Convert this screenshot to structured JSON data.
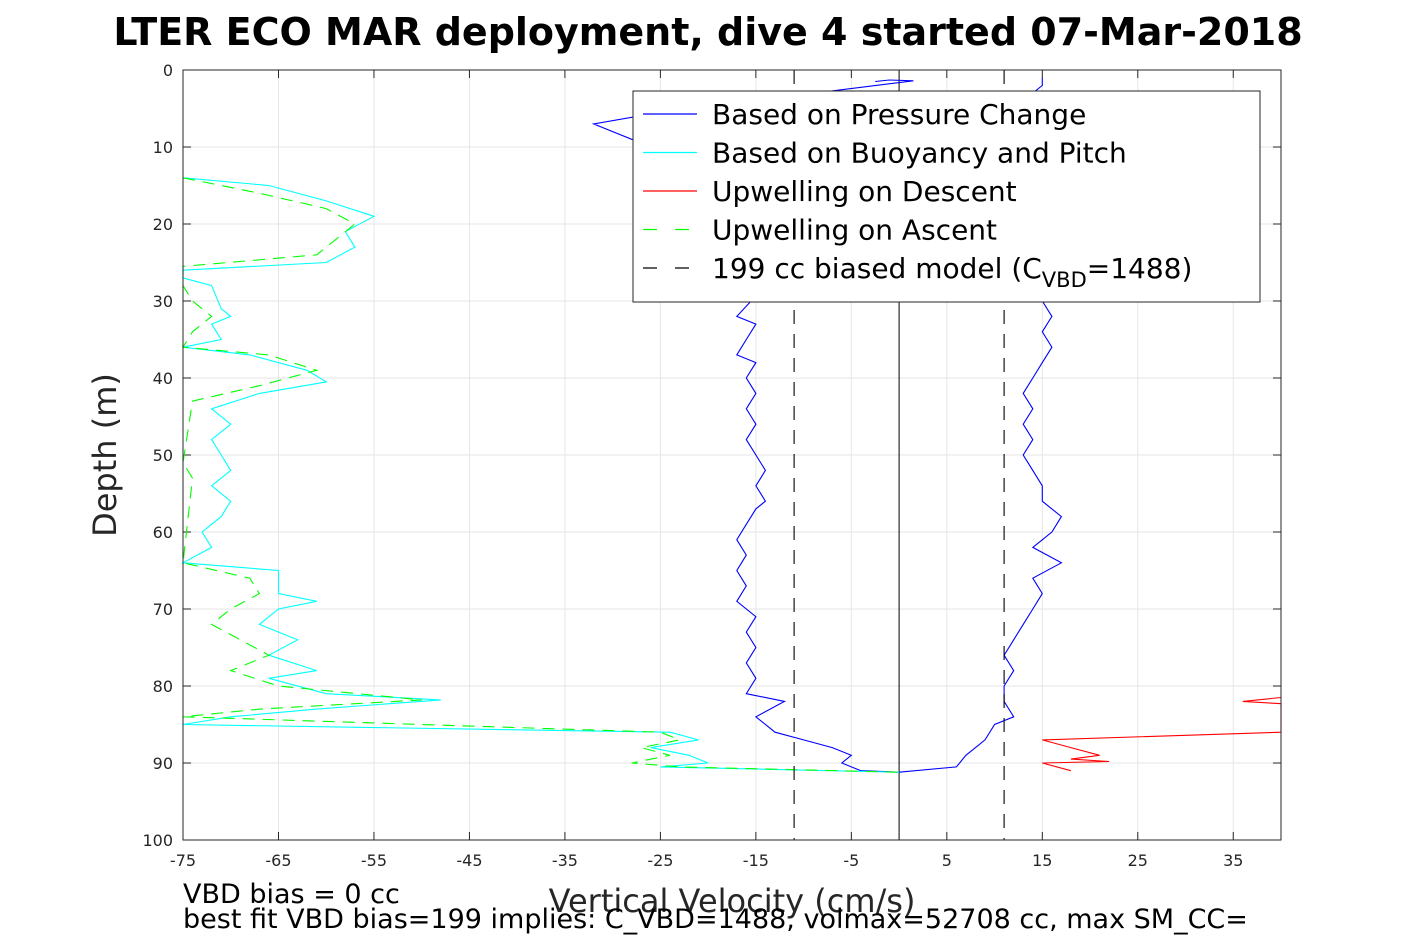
{
  "chart_data": {
    "type": "line",
    "title": "LTER ECO MAR deployment, dive 4 started 07-Mar-2018",
    "xlabel": "Vertical Velocity (cm/s)",
    "ylabel": "Depth (m)",
    "xlim": [
      -75,
      40
    ],
    "ylim": [
      0,
      100
    ],
    "y_reversed": true,
    "grid": true,
    "legend_placement": "top-right",
    "xticks": [
      -75,
      -65,
      -55,
      -45,
      -35,
      -25,
      -15,
      -5,
      5,
      15,
      25,
      35
    ],
    "yticks": [
      0,
      10,
      20,
      30,
      40,
      50,
      60,
      70,
      80,
      90,
      100
    ],
    "legend": [
      {
        "label": "Based on Pressure Change",
        "color": "#0000ff",
        "dash": "solid"
      },
      {
        "label": "Based on Buoyancy and Pitch",
        "color": "#00ffff",
        "dash": "solid"
      },
      {
        "label": "Upwelling on Descent",
        "color": "#ff0000",
        "dash": "solid"
      },
      {
        "label": "Upwelling on Ascent",
        "color": "#00ff00",
        "dash": "dashed"
      },
      {
        "label_prefix": "199 cc biased model (C",
        "label_sub": "VBD",
        "label_suffix": "=1488)",
        "color": "#000000",
        "dash": "dashed"
      }
    ],
    "series": [
      {
        "name": "Based on Pressure Change",
        "color": "#0000ff",
        "dash": "solid",
        "points": [
          [
            -2.5,
            1.5
          ],
          [
            -1,
            1.3
          ],
          [
            1.5,
            1.4
          ],
          [
            -25,
            5.5
          ],
          [
            -32,
            7
          ],
          [
            -28,
            9
          ],
          [
            -22,
            11
          ],
          [
            -14,
            28
          ],
          [
            -17,
            32
          ],
          [
            -15,
            33
          ],
          [
            -16,
            35
          ],
          [
            -17,
            37
          ],
          [
            -15,
            38
          ],
          [
            -16,
            40
          ],
          [
            -15,
            42
          ],
          [
            -16,
            44
          ],
          [
            -15,
            46
          ],
          [
            -16,
            48
          ],
          [
            -15,
            50
          ],
          [
            -14,
            52
          ],
          [
            -15,
            54
          ],
          [
            -14,
            56
          ],
          [
            -15,
            57
          ],
          [
            -16,
            59
          ],
          [
            -17,
            61
          ],
          [
            -16,
            63
          ],
          [
            -17,
            65
          ],
          [
            -16,
            67
          ],
          [
            -17,
            69
          ],
          [
            -15,
            71
          ],
          [
            -16,
            73
          ],
          [
            -15,
            75
          ],
          [
            -16,
            77
          ],
          [
            -15,
            79
          ],
          [
            -16,
            81
          ],
          [
            -12,
            82
          ],
          [
            -15,
            84
          ],
          [
            -13,
            86
          ],
          [
            -10,
            87
          ],
          [
            -7,
            88
          ],
          [
            -5,
            89
          ],
          [
            -6,
            90
          ],
          [
            -4,
            91
          ],
          [
            0,
            91.2
          ],
          [
            6,
            90.5
          ],
          [
            7,
            89
          ],
          [
            9,
            87
          ],
          [
            10,
            85
          ],
          [
            12,
            84
          ],
          [
            11,
            82
          ],
          [
            11,
            80
          ],
          [
            12,
            78
          ],
          [
            11,
            76
          ],
          [
            12,
            74
          ],
          [
            13,
            72
          ],
          [
            14,
            70
          ],
          [
            15,
            68
          ],
          [
            14,
            66
          ],
          [
            17,
            64
          ],
          [
            14,
            62
          ],
          [
            16,
            60
          ],
          [
            17,
            58
          ],
          [
            15,
            56
          ],
          [
            15,
            54
          ],
          [
            14,
            52
          ],
          [
            13,
            50
          ],
          [
            14,
            48
          ],
          [
            13,
            46
          ],
          [
            14,
            44
          ],
          [
            13,
            42
          ],
          [
            14,
            40
          ],
          [
            15,
            38
          ],
          [
            16,
            36
          ],
          [
            15,
            34
          ],
          [
            16,
            32
          ],
          [
            15,
            30
          ],
          [
            14,
            3
          ],
          [
            15,
            2
          ],
          [
            15,
            1
          ]
        ]
      },
      {
        "name": "Based on Buoyancy and Pitch",
        "color": "#00ffff",
        "dash": "solid",
        "points": [
          [
            -75,
            14
          ],
          [
            -66,
            15
          ],
          [
            -60,
            17
          ],
          [
            -55,
            19
          ],
          [
            -58,
            21
          ],
          [
            -57,
            23
          ],
          [
            -60,
            25
          ],
          [
            -75,
            26
          ],
          [
            -75,
            27
          ],
          [
            -72,
            28
          ],
          [
            -71,
            31
          ],
          [
            -70,
            32
          ],
          [
            -72,
            33
          ],
          [
            -71,
            35
          ],
          [
            -75,
            36
          ],
          [
            -68,
            37
          ],
          [
            -62,
            39
          ],
          [
            -60,
            40.5
          ],
          [
            -67,
            42
          ],
          [
            -72,
            44
          ],
          [
            -70,
            46
          ],
          [
            -72,
            48
          ],
          [
            -71,
            50
          ],
          [
            -70,
            52
          ],
          [
            -72,
            54
          ],
          [
            -70,
            56
          ],
          [
            -71,
            58
          ],
          [
            -73,
            60
          ],
          [
            -72,
            62
          ],
          [
            -75,
            64
          ],
          [
            -65,
            65
          ],
          [
            -65,
            68
          ],
          [
            -61,
            69
          ],
          [
            -65,
            70
          ],
          [
            -67,
            72
          ],
          [
            -63,
            74
          ],
          [
            -66,
            76
          ],
          [
            -61,
            78
          ],
          [
            -66,
            79
          ],
          [
            -60,
            81
          ],
          [
            -48,
            81.8
          ],
          [
            -61,
            83
          ],
          [
            -70,
            84
          ],
          [
            -75,
            85
          ],
          [
            -24,
            86
          ],
          [
            -21,
            87
          ],
          [
            -26,
            88
          ],
          [
            -22,
            89
          ],
          [
            -20,
            90
          ],
          [
            -25,
            90.5
          ],
          [
            0,
            91.2
          ]
        ]
      },
      {
        "name": "Upwelling on Descent",
        "color": "#ff0000",
        "dash": "solid",
        "points": [
          [
            40,
            81.5
          ],
          [
            36,
            82
          ],
          [
            40,
            82.3
          ],
          [
            40,
            86
          ],
          [
            15,
            87
          ],
          [
            18,
            88
          ],
          [
            21,
            89
          ],
          [
            18,
            89.5
          ],
          [
            22,
            89.8
          ],
          [
            15,
            90
          ],
          [
            18,
            91
          ]
        ]
      },
      {
        "name": "Upwelling on Ascent",
        "color": "#00ff00",
        "dash": "dashed",
        "points": [
          [
            -75,
            14
          ],
          [
            -67,
            16
          ],
          [
            -60,
            18
          ],
          [
            -57,
            20
          ],
          [
            -59,
            22
          ],
          [
            -61,
            24
          ],
          [
            -75,
            25.5
          ],
          [
            -75,
            28
          ],
          [
            -74,
            30
          ],
          [
            -72,
            32
          ],
          [
            -74,
            34
          ],
          [
            -75,
            36
          ],
          [
            -66,
            37
          ],
          [
            -61,
            39
          ],
          [
            -67,
            41
          ],
          [
            -74,
            43
          ],
          [
            -75,
            51
          ],
          [
            -74,
            53
          ],
          [
            -75,
            64
          ],
          [
            -68,
            66
          ],
          [
            -67,
            68
          ],
          [
            -70,
            70
          ],
          [
            -72,
            72
          ],
          [
            -69,
            74
          ],
          [
            -66,
            76
          ],
          [
            -70,
            78
          ],
          [
            -65,
            80
          ],
          [
            -50,
            81.8
          ],
          [
            -67,
            83
          ],
          [
            -75,
            84
          ],
          [
            -25,
            86
          ],
          [
            -23,
            87
          ],
          [
            -27,
            88
          ],
          [
            -24,
            89
          ],
          [
            -28,
            90
          ],
          [
            -23,
            90.5
          ],
          [
            0,
            91.2
          ]
        ]
      },
      {
        "name": "199 cc biased model (C_VBD=1488)",
        "color": "#000000",
        "dash": "dashed",
        "points_sets": [
          [
            [
              -11,
              0
            ],
            [
              -11,
              100
            ]
          ],
          [
            [
              11,
              0
            ],
            [
              11,
              100
            ]
          ]
        ]
      }
    ],
    "reference_line": {
      "x": 0,
      "color": "#000000",
      "dash": "solid"
    },
    "annotations": [
      "VBD bias = 0 cc",
      "best fit VBD bias=199 implies: C_VBD=1488, volmax=52708 cc, max SM_CC="
    ]
  }
}
